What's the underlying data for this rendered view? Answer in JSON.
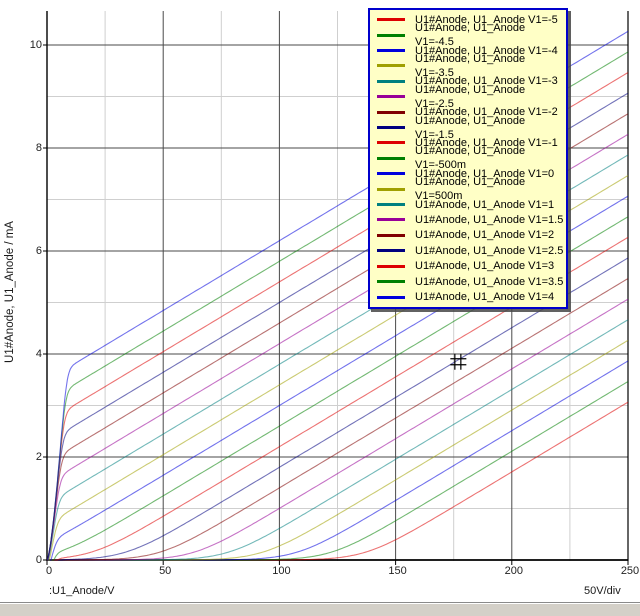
{
  "window": {
    "background": "#ffffff",
    "statusbar_color": "#d4d0c8"
  },
  "axes": {
    "x": {
      "title": ":U1_Anode/V",
      "scale_label": "50V/div",
      "ticks": [
        0,
        50,
        100,
        150,
        200,
        250
      ],
      "minor_step": 25,
      "range": [
        0,
        250
      ]
    },
    "y": {
      "title": "U1#Anode, U1_Anode / mA",
      "ticks": [
        0,
        2,
        4,
        6,
        8,
        10
      ],
      "minor_step": 1,
      "range": [
        0,
        10.6
      ]
    }
  },
  "legend": {
    "background": "#ffffc6",
    "border_color": "#0000cc",
    "position": "top-right"
  },
  "cursor": {
    "x_V": 177,
    "y_mA": 3.85,
    "glyph": "crosshair-hash"
  },
  "chart_data": {
    "type": "line",
    "title": "",
    "xlabel": ":U1_Anode/V",
    "ylabel": "U1#Anode, U1_Anode / mA",
    "xlim": [
      0,
      250
    ],
    "ylim": [
      0,
      10.6
    ],
    "x_tick_labels": [
      "0",
      "50",
      "100",
      "150",
      "200",
      "250"
    ],
    "y_tick_labels": [
      "0",
      "2",
      "4",
      "6",
      "8",
      "10"
    ],
    "grid": true,
    "minor_grid": true,
    "legend_position": "top-right",
    "colors": {
      "major_grid": "#4a4a4a",
      "minor_grid": "#cfcfcf",
      "frame": "#000000",
      "palette": [
        "#dd0000",
        "#008000",
        "#0000dd",
        "#a0a000",
        "#008080",
        "#980098",
        "#800000",
        "#000080"
      ]
    },
    "model": {
      "slope_mA_per_V": 0.0271,
      "steep_c": 0.176,
      "steep_p": 1.45,
      "knee_softmin_k": 1.8,
      "toe_softplus_w": 0.125
    },
    "x_samples_V": [
      0,
      25,
      50,
      75,
      100,
      125,
      150,
      175,
      200,
      225,
      250
    ],
    "series": [
      {
        "name": "U1#Anode, U1_Anode V1=-5",
        "v1": "-5",
        "color_index": 0,
        "b": -3.71,
        "y_mA": [
          0,
          0,
          0,
          0,
          0,
          0.05,
          0.39,
          1.03,
          1.71,
          2.39,
          3.07
        ]
      },
      {
        "name": "U1#Anode, U1_Anode V1=-4.5",
        "v1": "-4.5",
        "color_index": 1,
        "b": -3.31,
        "y_mA": [
          0,
          0,
          0,
          0,
          0.01,
          0.21,
          0.76,
          1.43,
          2.11,
          2.79,
          3.47
        ]
      },
      {
        "name": "U1#Anode, U1_Anode V1=-4",
        "v1": "-4",
        "color_index": 2,
        "b": -2.91,
        "y_mA": [
          0,
          0,
          0,
          0,
          0.07,
          0.52,
          1.16,
          1.83,
          2.51,
          3.19,
          3.87
        ]
      },
      {
        "name": "U1#Anode, U1_Anode V1=-3.5",
        "v1": "-3.5",
        "color_index": 3,
        "b": -2.51,
        "y_mA": [
          0,
          0,
          0,
          0.02,
          0.27,
          0.89,
          1.56,
          2.23,
          2.91,
          3.59,
          4.27
        ]
      },
      {
        "name": "U1#Anode, U1_Anode V1=-3",
        "v1": "-3",
        "color_index": 4,
        "b": -2.11,
        "y_mA": [
          0,
          0,
          0.01,
          0.15,
          0.62,
          1.28,
          1.96,
          2.63,
          3.31,
          3.99,
          4.67
        ]
      },
      {
        "name": "U1#Anode, U1_Anode V1=-2.5",
        "v1": "-2.5",
        "color_index": 5,
        "b": -1.71,
        "y_mA": [
          0,
          0,
          0.04,
          0.37,
          1.0,
          1.68,
          2.36,
          3.03,
          3.71,
          4.39,
          5.07
        ]
      },
      {
        "name": "U1#Anode, U1_Anode V1=-2",
        "v1": "-2",
        "color_index": 6,
        "b": -1.31,
        "y_mA": [
          0,
          0.01,
          0.17,
          0.74,
          1.4,
          2.08,
          2.76,
          3.43,
          4.11,
          4.79,
          5.47
        ]
      },
      {
        "name": "U1#Anode, U1_Anode V1=-1.5",
        "v1": "-1.5",
        "color_index": 7,
        "b": -0.91,
        "y_mA": [
          0,
          0.06,
          0.47,
          1.12,
          1.8,
          2.48,
          3.16,
          3.83,
          4.51,
          5.19,
          5.87
        ]
      },
      {
        "name": "U1#Anode, U1_Anode V1=-1",
        "v1": "-1",
        "color_index": 0,
        "b": -0.51,
        "y_mA": [
          0,
          0.25,
          0.85,
          1.52,
          2.2,
          2.88,
          3.56,
          4.23,
          4.91,
          5.59,
          6.27
        ]
      },
      {
        "name": "U1#Anode, U1_Anode V1=-500m",
        "v1": "-500m",
        "color_index": 1,
        "b": -0.11,
        "y_mA": [
          0,
          0.59,
          1.25,
          1.92,
          2.6,
          3.28,
          3.96,
          4.63,
          5.31,
          5.99,
          6.67
        ]
      },
      {
        "name": "U1#Anode, U1_Anode V1=0",
        "v1": "0",
        "color_index": 2,
        "b": 0.29,
        "y_mA": [
          0,
          0.97,
          1.65,
          2.32,
          3.0,
          3.68,
          4.36,
          5.03,
          5.71,
          6.39,
          7.07
        ]
      },
      {
        "name": "U1#Anode, U1_Anode V1=500m",
        "v1": "500m",
        "color_index": 3,
        "b": 0.69,
        "y_mA": [
          0,
          1.37,
          2.05,
          2.72,
          3.4,
          4.08,
          4.76,
          5.43,
          6.11,
          6.79,
          7.47
        ]
      },
      {
        "name": "U1#Anode, U1_Anode V1=1",
        "v1": "1",
        "color_index": 4,
        "b": 1.09,
        "y_mA": [
          0,
          1.77,
          2.45,
          3.12,
          3.8,
          4.48,
          5.16,
          5.83,
          6.51,
          7.19,
          7.87
        ]
      },
      {
        "name": "U1#Anode, U1_Anode V1=1.5",
        "v1": "1.5",
        "color_index": 5,
        "b": 1.49,
        "y_mA": [
          0,
          2.17,
          2.85,
          3.52,
          4.2,
          4.88,
          5.56,
          6.23,
          6.91,
          7.59,
          8.27
        ]
      },
      {
        "name": "U1#Anode, U1_Anode V1=2",
        "v1": "2",
        "color_index": 6,
        "b": 1.89,
        "y_mA": [
          0,
          2.57,
          3.25,
          3.92,
          4.6,
          5.28,
          5.96,
          6.63,
          7.31,
          7.99,
          8.67
        ]
      },
      {
        "name": "U1#Anode, U1_Anode V1=2.5",
        "v1": "2.5",
        "color_index": 7,
        "b": 2.29,
        "y_mA": [
          0,
          2.97,
          3.65,
          4.32,
          5.0,
          5.68,
          6.36,
          7.03,
          7.71,
          8.39,
          9.07
        ]
      },
      {
        "name": "U1#Anode, U1_Anode V1=3",
        "v1": "3",
        "color_index": 0,
        "b": 2.69,
        "y_mA": [
          0,
          3.36,
          4.05,
          4.72,
          5.4,
          6.08,
          6.76,
          7.43,
          8.11,
          8.79,
          9.47
        ]
      },
      {
        "name": "U1#Anode, U1_Anode V1=3.5",
        "v1": "3.5",
        "color_index": 1,
        "b": 3.09,
        "y_mA": [
          0,
          3.76,
          4.45,
          5.12,
          5.8,
          6.48,
          7.16,
          7.83,
          8.51,
          9.19,
          9.87
        ]
      },
      {
        "name": "U1#Anode, U1_Anode V1=4",
        "v1": "4",
        "color_index": 2,
        "b": 3.49,
        "y_mA": [
          0,
          4.17,
          4.85,
          5.52,
          6.2,
          6.88,
          7.56,
          8.23,
          8.91,
          9.59,
          10.27
        ]
      }
    ]
  }
}
